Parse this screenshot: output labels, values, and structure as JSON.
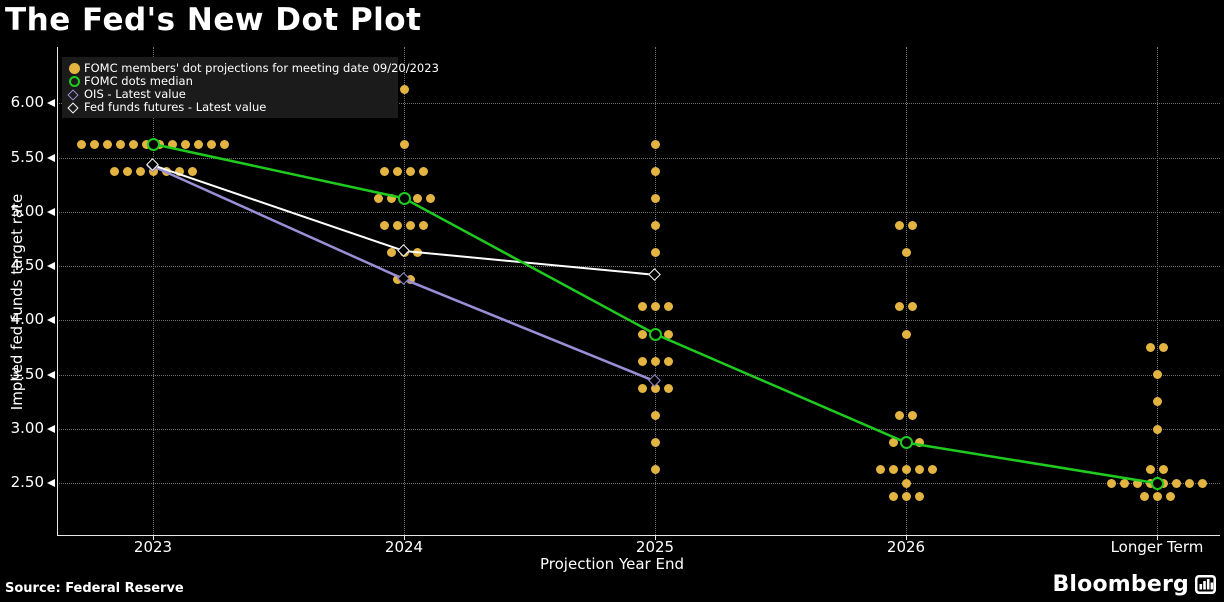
{
  "title": "The Fed's New Dot Plot",
  "source": "Source: Federal Reserve",
  "brand": {
    "name": "Bloomberg"
  },
  "chart_data": {
    "type": "scatter",
    "title": "The Fed's New Dot Plot",
    "xlabel": "Projection Year End",
    "ylabel": "Implied fed funds target rate",
    "categories": [
      "2023",
      "2024",
      "2025",
      "2026",
      "Longer Term"
    ],
    "yticks": [
      6.0,
      5.5,
      5.0,
      4.5,
      4.0,
      3.5,
      3.0,
      2.5
    ],
    "ylim": [
      2.0,
      6.5
    ],
    "grid": true,
    "legend_position": "top-left",
    "colors": {
      "dots": "#e3b441",
      "median": "#1ecb1e",
      "ois": "#998fd6",
      "futures": "#ffffff"
    },
    "legend": [
      {
        "label": "FOMC members' dot projections for meeting date 09/20/2023",
        "marker": "filled-circle",
        "color": "#e3b441"
      },
      {
        "label": "FOMC dots median",
        "marker": "open-circle",
        "color": "#1ecb1e"
      },
      {
        "label": "OIS - Latest value",
        "marker": "open-diamond",
        "color": "#998fd6"
      },
      {
        "label": "Fed funds futures - Latest value",
        "marker": "open-diamond",
        "color": "#ffffff"
      }
    ],
    "dots": {
      "2023": [
        {
          "rate": 5.625,
          "count": 12
        },
        {
          "rate": 5.375,
          "count": 7
        }
      ],
      "2024": [
        {
          "rate": 6.125,
          "count": 1
        },
        {
          "rate": 5.625,
          "count": 1
        },
        {
          "rate": 5.375,
          "count": 4
        },
        {
          "rate": 5.125,
          "count": 5
        },
        {
          "rate": 4.875,
          "count": 4
        },
        {
          "rate": 4.625,
          "count": 3
        },
        {
          "rate": 4.375,
          "count": 2
        }
      ],
      "2025": [
        {
          "rate": 5.625,
          "count": 1
        },
        {
          "rate": 5.375,
          "count": 1
        },
        {
          "rate": 5.125,
          "count": 1
        },
        {
          "rate": 4.875,
          "count": 1
        },
        {
          "rate": 4.625,
          "count": 1
        },
        {
          "rate": 4.125,
          "count": 3
        },
        {
          "rate": 3.875,
          "count": 3
        },
        {
          "rate": 3.625,
          "count": 3
        },
        {
          "rate": 3.375,
          "count": 3
        },
        {
          "rate": 3.125,
          "count": 1
        },
        {
          "rate": 2.875,
          "count": 1
        },
        {
          "rate": 2.625,
          "count": 1
        }
      ],
      "2026": [
        {
          "rate": 4.875,
          "count": 2
        },
        {
          "rate": 4.625,
          "count": 1
        },
        {
          "rate": 4.125,
          "count": 2
        },
        {
          "rate": 3.875,
          "count": 1
        },
        {
          "rate": 3.125,
          "count": 2
        },
        {
          "rate": 2.875,
          "count": 3
        },
        {
          "rate": 2.625,
          "count": 5
        },
        {
          "rate": 2.5,
          "count": 1
        },
        {
          "rate": 2.375,
          "count": 3
        }
      ],
      "Longer Term": [
        {
          "rate": 3.75,
          "count": 2
        },
        {
          "rate": 3.5,
          "count": 1
        },
        {
          "rate": 3.25,
          "count": 1
        },
        {
          "rate": 3.0,
          "count": 1
        },
        {
          "rate": 2.625,
          "count": 2
        },
        {
          "rate": 2.5,
          "count": 8
        },
        {
          "rate": 2.375,
          "count": 3
        }
      ]
    },
    "series": [
      {
        "name": "OIS - Latest value",
        "color": "#998fd6",
        "marker": "open-diamond",
        "points": [
          [
            "2023",
            5.42
          ],
          [
            "2024",
            4.38
          ],
          [
            "2025",
            3.44
          ]
        ]
      },
      {
        "name": "Fed funds futures - Latest value",
        "color": "#ffffff",
        "marker": "open-diamond",
        "points": [
          [
            "2023",
            5.43
          ],
          [
            "2024",
            4.64
          ],
          [
            "2025",
            4.42
          ]
        ]
      },
      {
        "name": "FOMC dots median",
        "color": "#1ecb1e",
        "marker": "open-circle",
        "points": [
          [
            "2023",
            5.625
          ],
          [
            "2024",
            5.125
          ],
          [
            "2025",
            3.875
          ],
          [
            "2026",
            2.875
          ],
          [
            "Longer Term",
            2.5
          ]
        ]
      }
    ]
  }
}
